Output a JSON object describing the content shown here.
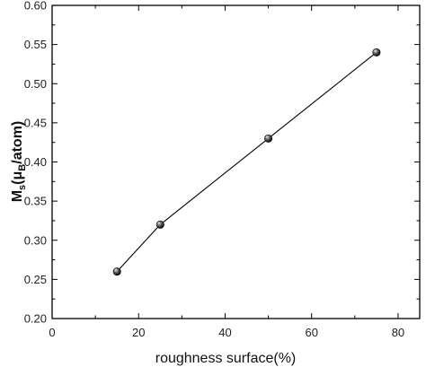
{
  "chart_data": {
    "type": "line",
    "title": "",
    "xlabel": "roughness surface(%)",
    "ylabel": {
      "main": "M",
      "sub": "s",
      "open": "(μ",
      "sub2": "B",
      "tail": "/atom)"
    },
    "xlim": [
      0,
      85
    ],
    "ylim": [
      0.2,
      0.6
    ],
    "xticks": [
      0,
      20,
      40,
      60,
      80
    ],
    "yticks": [
      0.2,
      0.25,
      0.3,
      0.35,
      0.4,
      0.45,
      0.5,
      0.55,
      0.6
    ],
    "xtick_labels": [
      "0",
      "20",
      "40",
      "60",
      "80"
    ],
    "ytick_labels": [
      "0.20",
      "0.25",
      "0.30",
      "0.35",
      "0.40",
      "0.45",
      "0.50",
      "0.55",
      "0.60"
    ],
    "grid": false,
    "legend": "none",
    "marker": "sphere",
    "series": [
      {
        "x": [
          15,
          25,
          50,
          75
        ],
        "y": [
          0.26,
          0.32,
          0.43,
          0.54
        ],
        "color": "#000000"
      }
    ]
  }
}
